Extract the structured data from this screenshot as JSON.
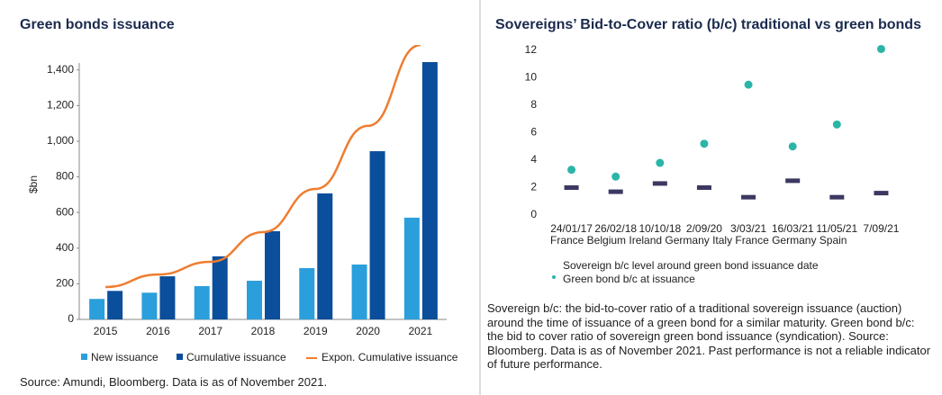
{
  "chart_data": [
    {
      "type": "bar",
      "title": "Green bonds issuance",
      "y_label": "$bn",
      "categories": [
        "2015",
        "2016",
        "2017",
        "2018",
        "2019",
        "2020",
        "2021"
      ],
      "series": [
        {
          "name": "New issuance",
          "color": "#2a9fdc",
          "values": [
            115,
            150,
            187,
            217,
            288,
            308,
            571
          ]
        },
        {
          "name": "Cumulative issuance",
          "color": "#0b4e9b",
          "values": [
            160,
            242,
            354,
            495,
            707,
            944,
            1444
          ]
        },
        {
          "name": "Expon. Cumulative issuance",
          "color": "#ee7d30",
          "kind": "line",
          "values": [
            182,
            252,
            323,
            490,
            732,
            1086,
            1540
          ]
        }
      ],
      "ylim": [
        0,
        1540
      ],
      "yticks": [
        0,
        {
          "value": 200,
          "label": "200"
        },
        400,
        600,
        800,
        {
          "value": 1000,
          "label": "1,000"
        },
        {
          "value": 1200,
          "label": "1,200"
        },
        {
          "value": 1400,
          "label": "1,400"
        }
      ],
      "source": "Source: Amundi, Bloomberg. Data is as of November 2021."
    },
    {
      "type": "dot",
      "title": "Sovereigns’ Bid-to-Cover ratio (b/c) traditional vs green bonds",
      "categories": [
        "24/01/17",
        "26/02/18",
        "10/10/18",
        "2/09/20",
        "3/03/21",
        "16/03/21",
        "11/05/21",
        "7/09/21"
      ],
      "countries": "France Belgium Ireland Germany Italy France Germany Spain",
      "series": [
        {
          "name": "Sovereign b/c level around green bond issuance date",
          "color": "#3b3862",
          "marker": "dash",
          "values": [
            2.0,
            1.7,
            2.3,
            2.0,
            1.3,
            2.5,
            1.3,
            1.6
          ]
        },
        {
          "name": "Green bond b/c at issuance",
          "color": "#2bb5a9",
          "marker": "dot",
          "values": [
            3.3,
            2.8,
            3.8,
            5.2,
            9.5,
            5.0,
            6.6,
            12.1
          ]
        }
      ],
      "ylim": [
        0,
        12
      ],
      "yticks": [
        0,
        2,
        4,
        6,
        8,
        10,
        12
      ],
      "note": "Sovereign b/c: the bid-to-cover ratio of a traditional sovereign issuance (auction) around the time of issuance of a green bond for a similar maturity. Green bond b/c: the bid to cover ratio of sovereign green bond issuance (syndication). Source: Bloomberg. Data is as of November 2021. Past performance is not a reliable indicator of future performance."
    }
  ]
}
